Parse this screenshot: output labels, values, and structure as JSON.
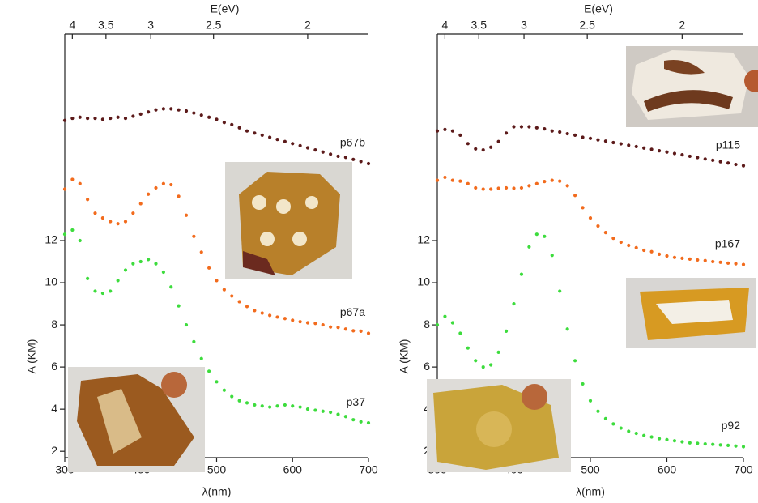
{
  "chart_data": [
    {
      "type": "scatter",
      "xlabel": "λ(nm)",
      "ylabel": "A (KM)",
      "x2label": "E(eV)",
      "xlim": [
        300,
        700
      ],
      "xticks": [
        300,
        400,
        500,
        600,
        700
      ],
      "ylim": [
        1.7,
        21.8
      ],
      "yticks": [
        2,
        4,
        6,
        8,
        10,
        12
      ],
      "x2ticks": [
        4,
        3.5,
        3,
        2.5,
        2
      ],
      "x": [
        300,
        310,
        320,
        330,
        340,
        350,
        360,
        370,
        380,
        390,
        400,
        410,
        420,
        430,
        440,
        450,
        460,
        470,
        480,
        490,
        500,
        510,
        520,
        530,
        540,
        550,
        560,
        570,
        580,
        590,
        600,
        610,
        620,
        630,
        640,
        650,
        660,
        670,
        680,
        690,
        700
      ],
      "series": [
        {
          "name": "p67b",
          "color": "#5c1a1a",
          "values": [
            17.7,
            17.8,
            17.85,
            17.8,
            17.8,
            17.75,
            17.8,
            17.85,
            17.8,
            17.9,
            18.0,
            18.1,
            18.2,
            18.25,
            18.25,
            18.2,
            18.15,
            18.05,
            17.95,
            17.85,
            17.75,
            17.6,
            17.5,
            17.35,
            17.2,
            17.1,
            17.0,
            16.9,
            16.8,
            16.7,
            16.6,
            16.5,
            16.4,
            16.3,
            16.2,
            16.1,
            16.0,
            15.95,
            15.85,
            15.75,
            15.65
          ]
        },
        {
          "name": "p67a",
          "color": "#f26b1d",
          "values": [
            14.44,
            14.9,
            14.7,
            13.95,
            13.3,
            13.07,
            12.9,
            12.8,
            12.9,
            13.3,
            13.75,
            14.2,
            14.5,
            14.7,
            14.65,
            14.1,
            13.2,
            12.2,
            11.45,
            10.7,
            10.1,
            9.67,
            9.37,
            9.1,
            8.87,
            8.68,
            8.56,
            8.45,
            8.37,
            8.3,
            8.22,
            8.15,
            8.1,
            8.07,
            8.0,
            7.9,
            7.88,
            7.8,
            7.72,
            7.7,
            7.6
          ]
        },
        {
          "name": "p37",
          "color": "#3ddc3d",
          "values": [
            12.3,
            12.5,
            12.0,
            10.2,
            9.6,
            9.5,
            9.6,
            10.1,
            10.6,
            10.9,
            11.0,
            11.1,
            10.9,
            10.5,
            9.8,
            8.9,
            8.0,
            7.2,
            6.4,
            5.8,
            5.3,
            4.9,
            4.6,
            4.4,
            4.3,
            4.2,
            4.15,
            4.1,
            4.15,
            4.2,
            4.15,
            4.1,
            4.0,
            3.95,
            3.9,
            3.85,
            3.75,
            3.65,
            3.5,
            3.4,
            3.35
          ]
        }
      ]
    },
    {
      "type": "scatter",
      "xlabel": "λ(nm)",
      "ylabel": "A (KM)",
      "x2label": "E(eV)",
      "xlim": [
        300,
        700
      ],
      "xticks": [
        300,
        400,
        500,
        600,
        700
      ],
      "ylim": [
        1.7,
        21.8
      ],
      "yticks": [
        2,
        4,
        6,
        8,
        10,
        12
      ],
      "x2ticks": [
        4,
        3.5,
        3,
        2.5,
        2
      ],
      "x": [
        300,
        310,
        320,
        330,
        340,
        350,
        360,
        370,
        380,
        390,
        400,
        410,
        420,
        430,
        440,
        450,
        460,
        470,
        480,
        490,
        500,
        510,
        520,
        530,
        540,
        550,
        560,
        570,
        580,
        590,
        600,
        610,
        620,
        630,
        640,
        650,
        660,
        670,
        680,
        690,
        700
      ],
      "series": [
        {
          "name": "p115",
          "color": "#5c1a1a",
          "values": [
            17.2,
            17.27,
            17.2,
            17.0,
            16.6,
            16.35,
            16.3,
            16.43,
            16.7,
            17.1,
            17.4,
            17.4,
            17.4,
            17.35,
            17.3,
            17.2,
            17.15,
            17.07,
            17.0,
            16.9,
            16.85,
            16.78,
            16.72,
            16.65,
            16.59,
            16.52,
            16.46,
            16.39,
            16.33,
            16.26,
            16.2,
            16.13,
            16.07,
            16.0,
            15.94,
            15.87,
            15.81,
            15.74,
            15.68,
            15.61,
            15.55
          ]
        },
        {
          "name": "p167",
          "color": "#f26b1d",
          "values": [
            14.86,
            15.0,
            14.86,
            14.82,
            14.7,
            14.5,
            14.44,
            14.44,
            14.48,
            14.5,
            14.48,
            14.5,
            14.6,
            14.7,
            14.8,
            14.86,
            14.82,
            14.6,
            14.14,
            13.56,
            13.07,
            12.69,
            12.38,
            12.11,
            11.92,
            11.77,
            11.66,
            11.54,
            11.47,
            11.35,
            11.27,
            11.2,
            11.16,
            11.12,
            11.08,
            11.05,
            11.0,
            10.97,
            10.93,
            10.9,
            10.86
          ]
        },
        {
          "name": "p92",
          "color": "#3ddc3d",
          "values": [
            8.0,
            8.4,
            8.1,
            7.6,
            6.9,
            6.3,
            6.0,
            6.1,
            6.7,
            7.7,
            9.0,
            10.4,
            11.7,
            12.3,
            12.2,
            11.3,
            9.6,
            7.8,
            6.3,
            5.2,
            4.4,
            3.9,
            3.55,
            3.3,
            3.1,
            2.95,
            2.85,
            2.75,
            2.68,
            2.6,
            2.55,
            2.5,
            2.45,
            2.4,
            2.38,
            2.35,
            2.33,
            2.3,
            2.28,
            2.25,
            2.22
          ]
        }
      ]
    }
  ]
}
